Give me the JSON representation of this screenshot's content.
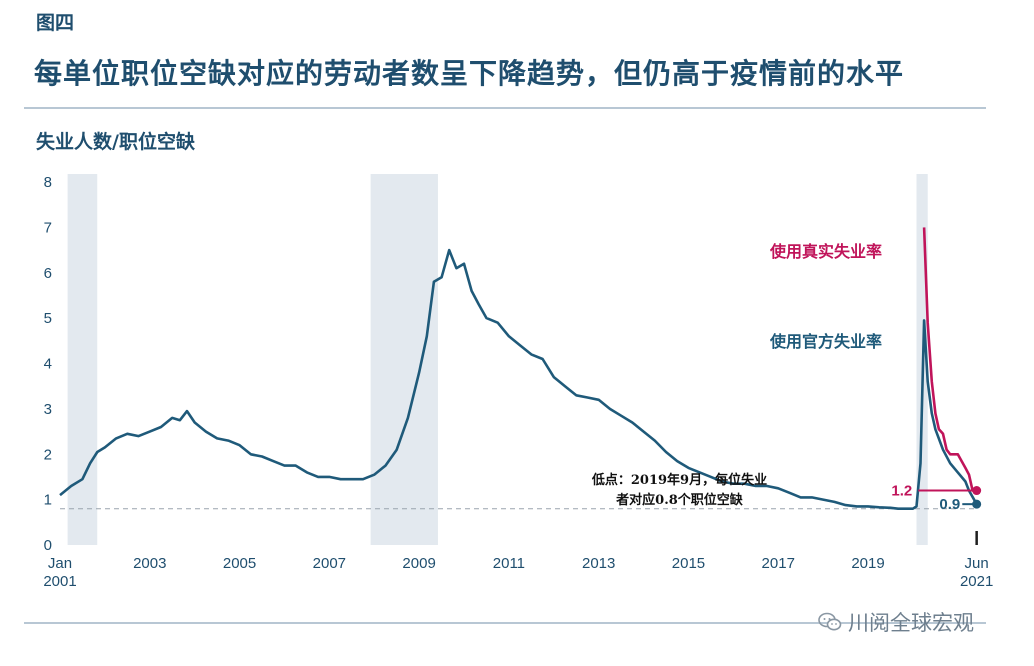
{
  "header": {
    "figure_label": "图四",
    "title": "每单位职位空缺对应的劳动者数呈下降趋势，但仍高于疫情前的水平"
  },
  "watermark": "川阅全球宏观",
  "chart_data": {
    "type": "line",
    "ylabel": "失业人数/职位空缺",
    "ylim": [
      0,
      8
    ],
    "yticks": [
      0,
      1,
      2,
      3,
      4,
      5,
      6,
      7,
      8
    ],
    "xlim": [
      2001.0,
      2021.45
    ],
    "xtick_labels": [
      {
        "x": 2001.0,
        "line1": "Jan",
        "line2": "2001"
      },
      {
        "x": 2003.0,
        "line1": "2003",
        "line2": ""
      },
      {
        "x": 2005.0,
        "line1": "2005",
        "line2": ""
      },
      {
        "x": 2007.0,
        "line1": "2007",
        "line2": ""
      },
      {
        "x": 2009.0,
        "line1": "2009",
        "line2": ""
      },
      {
        "x": 2011.0,
        "line1": "2011",
        "line2": ""
      },
      {
        "x": 2013.0,
        "line1": "2013",
        "line2": ""
      },
      {
        "x": 2015.0,
        "line1": "2015",
        "line2": ""
      },
      {
        "x": 2017.0,
        "line1": "2017",
        "line2": ""
      },
      {
        "x": 2019.0,
        "line1": "2019",
        "line2": ""
      },
      {
        "x": 2021.42,
        "line1": "Jun",
        "line2": "2021"
      }
    ],
    "recessions": [
      [
        2001.17,
        2001.83
      ],
      [
        2007.92,
        2009.42
      ],
      [
        2020.08,
        2020.33
      ]
    ],
    "reference_line": {
      "y": 0.8
    },
    "annotation": {
      "line1": "低点：2019年9月，每位失业",
      "line2": "者对应0.8个职位空缺"
    },
    "series": [
      {
        "name": "使用官方失业率",
        "color": "#1f5a7a",
        "end_label": "0.9",
        "points": [
          [
            2001.0,
            1.1
          ],
          [
            2001.25,
            1.3
          ],
          [
            2001.5,
            1.45
          ],
          [
            2001.67,
            1.8
          ],
          [
            2001.83,
            2.05
          ],
          [
            2002.0,
            2.15
          ],
          [
            2002.25,
            2.35
          ],
          [
            2002.5,
            2.45
          ],
          [
            2002.75,
            2.4
          ],
          [
            2003.0,
            2.5
          ],
          [
            2003.25,
            2.6
          ],
          [
            2003.5,
            2.8
          ],
          [
            2003.67,
            2.75
          ],
          [
            2003.83,
            2.95
          ],
          [
            2004.0,
            2.7
          ],
          [
            2004.25,
            2.5
          ],
          [
            2004.5,
            2.35
          ],
          [
            2004.75,
            2.3
          ],
          [
            2005.0,
            2.2
          ],
          [
            2005.25,
            2.0
          ],
          [
            2005.5,
            1.95
          ],
          [
            2005.75,
            1.85
          ],
          [
            2006.0,
            1.75
          ],
          [
            2006.25,
            1.75
          ],
          [
            2006.5,
            1.6
          ],
          [
            2006.75,
            1.5
          ],
          [
            2007.0,
            1.5
          ],
          [
            2007.25,
            1.45
          ],
          [
            2007.5,
            1.45
          ],
          [
            2007.75,
            1.45
          ],
          [
            2008.0,
            1.55
          ],
          [
            2008.25,
            1.75
          ],
          [
            2008.5,
            2.1
          ],
          [
            2008.75,
            2.8
          ],
          [
            2009.0,
            3.8
          ],
          [
            2009.17,
            4.6
          ],
          [
            2009.33,
            5.8
          ],
          [
            2009.5,
            5.9
          ],
          [
            2009.67,
            6.5
          ],
          [
            2009.83,
            6.1
          ],
          [
            2010.0,
            6.2
          ],
          [
            2010.17,
            5.6
          ],
          [
            2010.33,
            5.3
          ],
          [
            2010.5,
            5.0
          ],
          [
            2010.75,
            4.9
          ],
          [
            2011.0,
            4.6
          ],
          [
            2011.25,
            4.4
          ],
          [
            2011.5,
            4.2
          ],
          [
            2011.75,
            4.1
          ],
          [
            2012.0,
            3.7
          ],
          [
            2012.25,
            3.5
          ],
          [
            2012.5,
            3.3
          ],
          [
            2012.75,
            3.25
          ],
          [
            2013.0,
            3.2
          ],
          [
            2013.25,
            3.0
          ],
          [
            2013.5,
            2.85
          ],
          [
            2013.75,
            2.7
          ],
          [
            2014.0,
            2.5
          ],
          [
            2014.25,
            2.3
          ],
          [
            2014.5,
            2.05
          ],
          [
            2014.75,
            1.85
          ],
          [
            2015.0,
            1.7
          ],
          [
            2015.25,
            1.6
          ],
          [
            2015.5,
            1.5
          ],
          [
            2015.75,
            1.4
          ],
          [
            2016.0,
            1.35
          ],
          [
            2016.25,
            1.35
          ],
          [
            2016.5,
            1.3
          ],
          [
            2016.75,
            1.3
          ],
          [
            2017.0,
            1.25
          ],
          [
            2017.25,
            1.15
          ],
          [
            2017.5,
            1.05
          ],
          [
            2017.75,
            1.05
          ],
          [
            2018.0,
            1.0
          ],
          [
            2018.25,
            0.95
          ],
          [
            2018.5,
            0.88
          ],
          [
            2018.75,
            0.85
          ],
          [
            2019.0,
            0.85
          ],
          [
            2019.25,
            0.83
          ],
          [
            2019.5,
            0.82
          ],
          [
            2019.67,
            0.8
          ],
          [
            2019.83,
            0.8
          ],
          [
            2020.0,
            0.8
          ],
          [
            2020.08,
            0.85
          ],
          [
            2020.17,
            1.8
          ],
          [
            2020.25,
            4.95
          ],
          [
            2020.33,
            3.6
          ],
          [
            2020.42,
            2.9
          ],
          [
            2020.5,
            2.55
          ],
          [
            2020.67,
            2.1
          ],
          [
            2020.83,
            1.8
          ],
          [
            2021.0,
            1.6
          ],
          [
            2021.17,
            1.4
          ],
          [
            2021.25,
            1.2
          ],
          [
            2021.42,
            0.9
          ]
        ]
      },
      {
        "name": "使用真实失业率",
        "color": "#c0145a",
        "end_label": "1.2",
        "points": [
          [
            2020.25,
            7.0
          ],
          [
            2020.33,
            4.9
          ],
          [
            2020.42,
            3.6
          ],
          [
            2020.5,
            2.9
          ],
          [
            2020.58,
            2.55
          ],
          [
            2020.67,
            2.45
          ],
          [
            2020.75,
            2.1
          ],
          [
            2020.83,
            2.0
          ],
          [
            2021.0,
            2.0
          ],
          [
            2021.17,
            1.7
          ],
          [
            2021.25,
            1.55
          ],
          [
            2021.33,
            1.2
          ],
          [
            2021.42,
            1.2
          ]
        ]
      }
    ]
  }
}
